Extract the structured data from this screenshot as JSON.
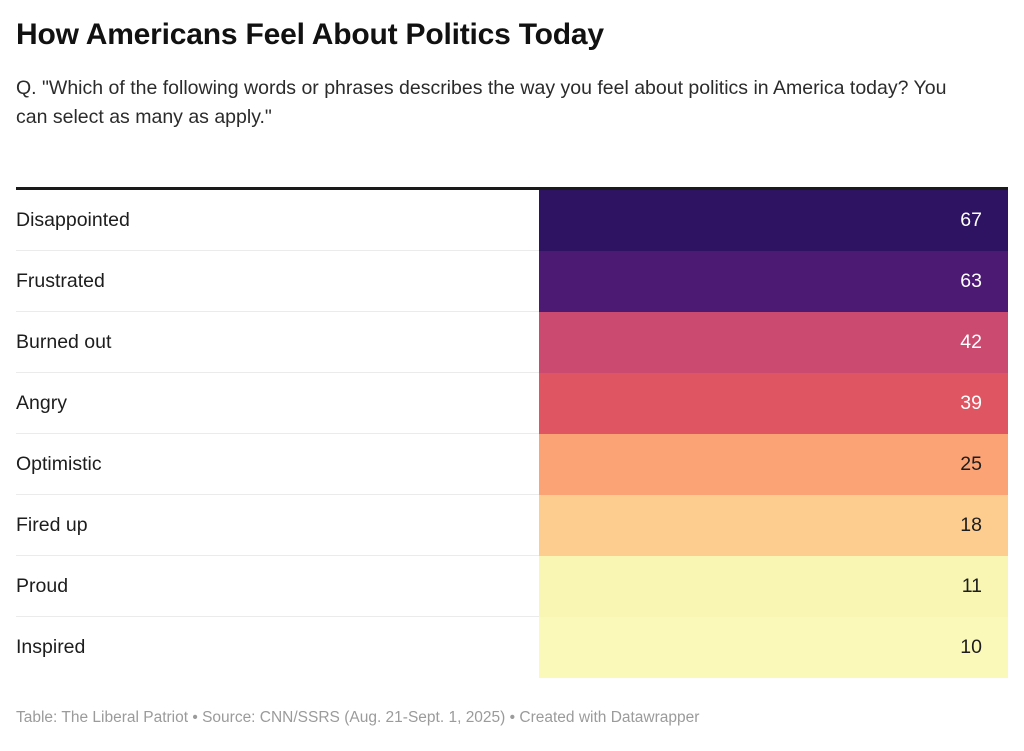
{
  "header": {
    "title": "How Americans Feel About Politics Today",
    "subtitle": "Q. \"Which of the following words or phrases describes the way you feel about politics in America today? You can select as many as apply.\""
  },
  "chart_data": {
    "type": "table",
    "title": "How Americans Feel About Politics Today",
    "subtitle": "Q. \"Which of the following words or phrases describes the way you feel about politics in America today? You can select as many as apply.\"",
    "categories": [
      "Disappointed",
      "Frustrated",
      "Burned out",
      "Angry",
      "Optimistic",
      "Fired up",
      "Proud",
      "Inspired"
    ],
    "values": [
      67,
      63,
      42,
      39,
      25,
      18,
      11,
      10
    ],
    "value_range": [
      10,
      67
    ],
    "legend_position": "none",
    "grid": "off",
    "heatmap_colors": [
      "#2d1361",
      "#4c1a72",
      "#cb4a70",
      "#e05562",
      "#fca376",
      "#fdcd90",
      "#f9f5b2",
      "#fbf9b9"
    ]
  },
  "table": {
    "rows": [
      {
        "label": "Disappointed",
        "value": "67",
        "bg": "#2d1361",
        "text_color": "#ffffff"
      },
      {
        "label": "Frustrated",
        "value": "63",
        "bg": "#4c1a72",
        "text_color": "#ffffff"
      },
      {
        "label": "Burned out",
        "value": "42",
        "bg": "#cb4a70",
        "text_color": "#ffffff"
      },
      {
        "label": "Angry",
        "value": "39",
        "bg": "#e05562",
        "text_color": "#ffffff"
      },
      {
        "label": "Optimistic",
        "value": "25",
        "bg": "#fca376",
        "text_color": "#1d1d1d"
      },
      {
        "label": "Fired up",
        "value": "18",
        "bg": "#fdcd90",
        "text_color": "#1d1d1d"
      },
      {
        "label": "Proud",
        "value": "11",
        "bg": "#f9f5b2",
        "text_color": "#1d1d1d"
      },
      {
        "label": "Inspired",
        "value": "10",
        "bg": "#fbf9b9",
        "text_color": "#1d1d1d"
      }
    ]
  },
  "footer": {
    "text": "Table: The Liberal Patriot • Source: CNN/SSRS (Aug. 21-Sept. 1, 2025) • Created with Datawrapper"
  }
}
